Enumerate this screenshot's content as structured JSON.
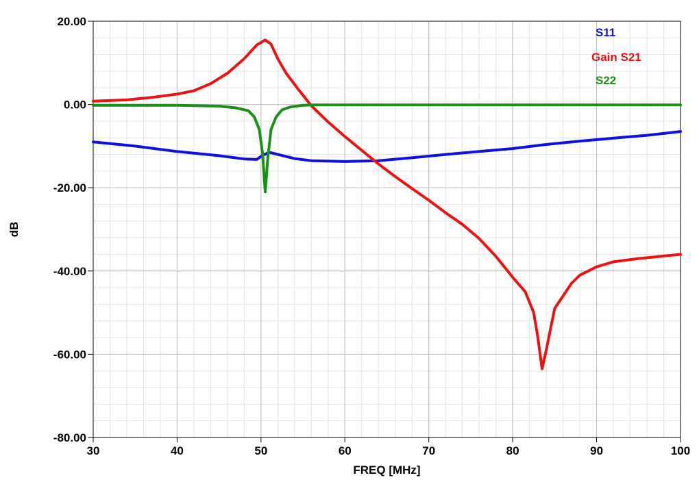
{
  "chart_data": {
    "type": "line",
    "title": "",
    "xlabel": "FREQ [MHz]",
    "ylabel": "dB",
    "xlim": [
      30,
      100
    ],
    "ylim": [
      -80,
      20
    ],
    "x_ticks": [
      30,
      40,
      50,
      60,
      70,
      80,
      90,
      100
    ],
    "x_tick_labels": [
      "30",
      "40",
      "50",
      "60",
      "70",
      "80",
      "90",
      "100"
    ],
    "y_ticks": [
      20,
      0,
      -20,
      -40,
      -60,
      -80
    ],
    "y_tick_labels": [
      "20.00",
      "0.00",
      "-20.00",
      "-40.00",
      "-60.00",
      "-80.00"
    ],
    "x_minor_step": 2,
    "y_minor_step": 4,
    "grid": true,
    "legend_position": "top-right",
    "series": [
      {
        "name": "S11",
        "color": "#1010e0",
        "points": [
          [
            30,
            -9
          ],
          [
            35,
            -10
          ],
          [
            40,
            -11.3
          ],
          [
            45,
            -12.3
          ],
          [
            48,
            -13.1
          ],
          [
            49.5,
            -13.2
          ],
          [
            50.2,
            -12.2
          ],
          [
            51,
            -11.5
          ],
          [
            52,
            -12
          ],
          [
            54,
            -13
          ],
          [
            56,
            -13.5
          ],
          [
            60,
            -13.7
          ],
          [
            64,
            -13.5
          ],
          [
            68,
            -12.8
          ],
          [
            72,
            -12
          ],
          [
            76,
            -11.3
          ],
          [
            80,
            -10.6
          ],
          [
            84,
            -9.6
          ],
          [
            88,
            -8.8
          ],
          [
            92,
            -8.1
          ],
          [
            96,
            -7.4
          ],
          [
            100,
            -6.5
          ]
        ]
      },
      {
        "name": "Gain S21",
        "color": "#ee1111",
        "points": [
          [
            30,
            0.8
          ],
          [
            34,
            1.1
          ],
          [
            37,
            1.7
          ],
          [
            40,
            2.5
          ],
          [
            42,
            3.3
          ],
          [
            44,
            5
          ],
          [
            46,
            7.5
          ],
          [
            48,
            11
          ],
          [
            49.5,
            14.3
          ],
          [
            50.5,
            15.5
          ],
          [
            51.2,
            14.5
          ],
          [
            52,
            11
          ],
          [
            53,
            7.5
          ],
          [
            54.5,
            3.5
          ],
          [
            56,
            -0.3
          ],
          [
            58,
            -4.2
          ],
          [
            60,
            -7.7
          ],
          [
            62,
            -11
          ],
          [
            64,
            -14.3
          ],
          [
            66,
            -17.3
          ],
          [
            68,
            -20.2
          ],
          [
            70,
            -23
          ],
          [
            72,
            -26
          ],
          [
            74,
            -28.8
          ],
          [
            76,
            -32.2
          ],
          [
            78,
            -36.5
          ],
          [
            80,
            -41.5
          ],
          [
            81.5,
            -45
          ],
          [
            82.5,
            -50
          ],
          [
            83,
            -56
          ],
          [
            83.5,
            -63.5
          ],
          [
            84,
            -59
          ],
          [
            84.5,
            -54
          ],
          [
            85,
            -49
          ],
          [
            86,
            -46
          ],
          [
            87,
            -43
          ],
          [
            88,
            -41
          ],
          [
            90,
            -39
          ],
          [
            92,
            -37.8
          ],
          [
            95,
            -37
          ],
          [
            100,
            -36
          ]
        ]
      },
      {
        "name": "S22",
        "color": "#179117",
        "points": [
          [
            30,
            -0.2
          ],
          [
            40,
            -0.2
          ],
          [
            45,
            -0.4
          ],
          [
            47,
            -0.8
          ],
          [
            48.5,
            -1.5
          ],
          [
            49.2,
            -3
          ],
          [
            49.8,
            -6
          ],
          [
            50.2,
            -12
          ],
          [
            50.5,
            -21
          ],
          [
            50.8,
            -13
          ],
          [
            51.2,
            -6
          ],
          [
            51.8,
            -3
          ],
          [
            52.5,
            -1.3
          ],
          [
            53.5,
            -0.6
          ],
          [
            55,
            -0.2
          ],
          [
            56,
            -0.1
          ],
          [
            100,
            -0.1
          ]
        ]
      }
    ]
  }
}
